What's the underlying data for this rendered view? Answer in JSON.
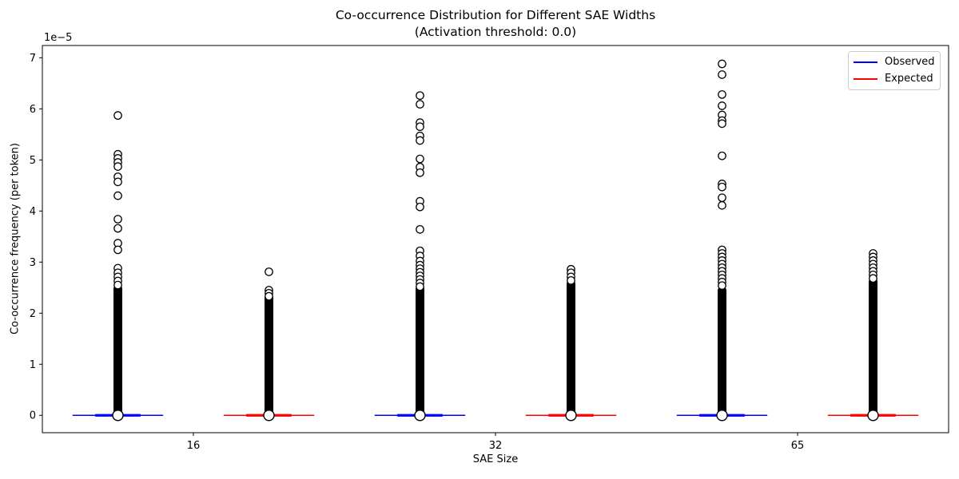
{
  "chart_data": {
    "type": "boxplot",
    "title": "Co-occurrence Distribution for Different SAE Widths",
    "subtitle": "(Activation threshold: 0.0)",
    "xlabel": "SAE Size",
    "ylabel": "Co-occurrence frequency (per token)",
    "offset_label": "1e−5",
    "grid": false,
    "xlim": [
      0.5,
      6.5
    ],
    "ylim_1e5": [
      -0.34,
      7.24
    ],
    "y_ticks": [
      0,
      1,
      2,
      3,
      4,
      5,
      6,
      7
    ],
    "x_ticks": [
      {
        "pos": 1.5,
        "label": "16"
      },
      {
        "pos": 3.5,
        "label": "32"
      },
      {
        "pos": 5.5,
        "label": "65"
      }
    ],
    "cap_width": 0.6,
    "box_width": 0.3,
    "colors": {
      "observed": "#0000ff",
      "expected": "#ff0000",
      "flier_edge": "#000000",
      "flier_face": "#ffffff"
    },
    "legend": {
      "position": "upper right",
      "items": [
        {
          "label": "Observed",
          "color": "#0000ff"
        },
        {
          "label": "Expected",
          "color": "#ff0000"
        }
      ]
    },
    "groups": [
      {
        "name": "observed-16",
        "sae_size": "16",
        "series": "Observed",
        "pos": 1,
        "color": "#0000ff",
        "median_1e5": 0,
        "dense_max_1e5": 2.48,
        "outliers_1e5": [
          5.87,
          5.11,
          5.03,
          4.95,
          4.87,
          4.67,
          4.57,
          4.3,
          3.84,
          3.66,
          3.37,
          3.24,
          2.88,
          2.79,
          2.71,
          2.63,
          2.55
        ],
        "zero_flier": true
      },
      {
        "name": "expected-16",
        "sae_size": "16",
        "series": "Expected",
        "pos": 2,
        "color": "#ff0000",
        "median_1e5": 0,
        "dense_max_1e5": 2.3,
        "outliers_1e5": [
          2.81,
          2.45,
          2.39,
          2.33
        ],
        "zero_flier": true
      },
      {
        "name": "observed-32",
        "sae_size": "32",
        "series": "Observed",
        "pos": 3,
        "color": "#0000ff",
        "median_1e5": 0,
        "dense_max_1e5": 2.48,
        "outliers_1e5": [
          6.26,
          6.09,
          5.73,
          5.65,
          5.47,
          5.38,
          5.02,
          4.86,
          4.75,
          4.19,
          4.08,
          3.64,
          3.22,
          3.12,
          3.02,
          2.94,
          2.87,
          2.8,
          2.73,
          2.66,
          2.59,
          2.52
        ],
        "zero_flier": true
      },
      {
        "name": "expected-32",
        "sae_size": "32",
        "series": "Expected",
        "pos": 4,
        "color": "#ff0000",
        "median_1e5": 0,
        "dense_max_1e5": 2.58,
        "outliers_1e5": [
          2.86,
          2.79,
          2.71,
          2.64
        ],
        "zero_flier": true
      },
      {
        "name": "observed-65",
        "sae_size": "65",
        "series": "Observed",
        "pos": 5,
        "color": "#0000ff",
        "median_1e5": 0,
        "dense_max_1e5": 2.45,
        "outliers_1e5": [
          6.88,
          6.67,
          6.28,
          6.06,
          5.88,
          5.77,
          5.71,
          5.08,
          4.53,
          4.47,
          4.26,
          4.11,
          3.24,
          3.17,
          3.1,
          3.03,
          2.96,
          2.89,
          2.82,
          2.75,
          2.68,
          2.61,
          2.54
        ],
        "zero_flier": true
      },
      {
        "name": "expected-65",
        "sae_size": "65",
        "series": "Expected",
        "pos": 6,
        "color": "#ff0000",
        "median_1e5": 0,
        "dense_max_1e5": 2.62,
        "outliers_1e5": [
          3.17,
          3.1,
          3.03,
          2.96,
          2.89,
          2.82,
          2.75,
          2.68
        ],
        "zero_flier": true
      }
    ]
  }
}
